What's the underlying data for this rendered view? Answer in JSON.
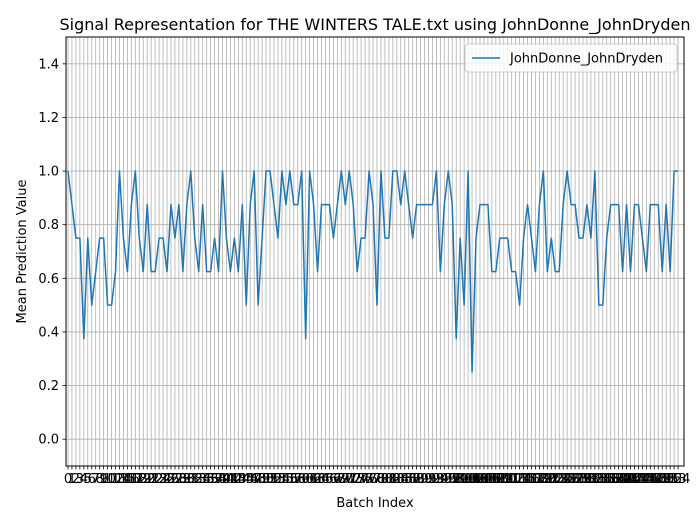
{
  "chart_data": {
    "type": "line",
    "title": "Signal Representation for THE WINTERS TALE.txt using JohnDonne_JohnDryden",
    "xlabel": "Batch Index",
    "ylabel": "Mean Prediction Value",
    "xlim": [
      -0.5,
      155.5
    ],
    "ylim": [
      -0.1,
      1.5
    ],
    "yticks": [
      0.0,
      0.2,
      0.4,
      0.6,
      0.8,
      1.0,
      1.2,
      1.4
    ],
    "grid": true,
    "legend": "top-right",
    "line_color": "#1f77b4",
    "series": [
      {
        "name": "JohnDonne_JohnDryden",
        "values": [
          1.0,
          0.875,
          0.75,
          0.75,
          0.375,
          0.75,
          0.5,
          0.625,
          0.75,
          0.75,
          0.5,
          0.5,
          0.625,
          1.0,
          0.75,
          0.625,
          0.875,
          1.0,
          0.75,
          0.625,
          0.875,
          0.625,
          0.625,
          0.75,
          0.75,
          0.625,
          0.875,
          0.75,
          0.875,
          0.625,
          0.875,
          1.0,
          0.75,
          0.625,
          0.875,
          0.625,
          0.625,
          0.75,
          0.625,
          1.0,
          0.75,
          0.625,
          0.75,
          0.625,
          0.875,
          0.5,
          0.875,
          1.0,
          0.5,
          0.75,
          1.0,
          1.0,
          0.875,
          0.75,
          1.0,
          0.875,
          1.0,
          0.875,
          0.875,
          1.0,
          0.375,
          1.0,
          0.875,
          0.625,
          0.875,
          0.875,
          0.875,
          0.75,
          0.875,
          1.0,
          0.875,
          1.0,
          0.875,
          0.625,
          0.75,
          0.75,
          1.0,
          0.875,
          0.5,
          1.0,
          0.75,
          0.75,
          1.0,
          1.0,
          0.875,
          1.0,
          0.875,
          0.75,
          0.875,
          0.875,
          0.875,
          0.875,
          0.875,
          1.0,
          0.625,
          0.875,
          1.0,
          0.875,
          0.375,
          0.75,
          0.5,
          1.0,
          0.25,
          0.75,
          0.875,
          0.875,
          0.875,
          0.625,
          0.625,
          0.75,
          0.75,
          0.75,
          0.625,
          0.625,
          0.5,
          0.75,
          0.875,
          0.75,
          0.625,
          0.875,
          1.0,
          0.625,
          0.75,
          0.625,
          0.625,
          0.875,
          1.0,
          0.875,
          0.875,
          0.75,
          0.75,
          0.875,
          0.75,
          1.0,
          0.5,
          0.5,
          0.75,
          0.875,
          0.875,
          0.875,
          0.625,
          0.875,
          0.625,
          0.875,
          0.875,
          0.75,
          0.625,
          0.875,
          0.875,
          0.875,
          0.625,
          0.875,
          0.625,
          1.0,
          1.0
        ]
      }
    ]
  }
}
